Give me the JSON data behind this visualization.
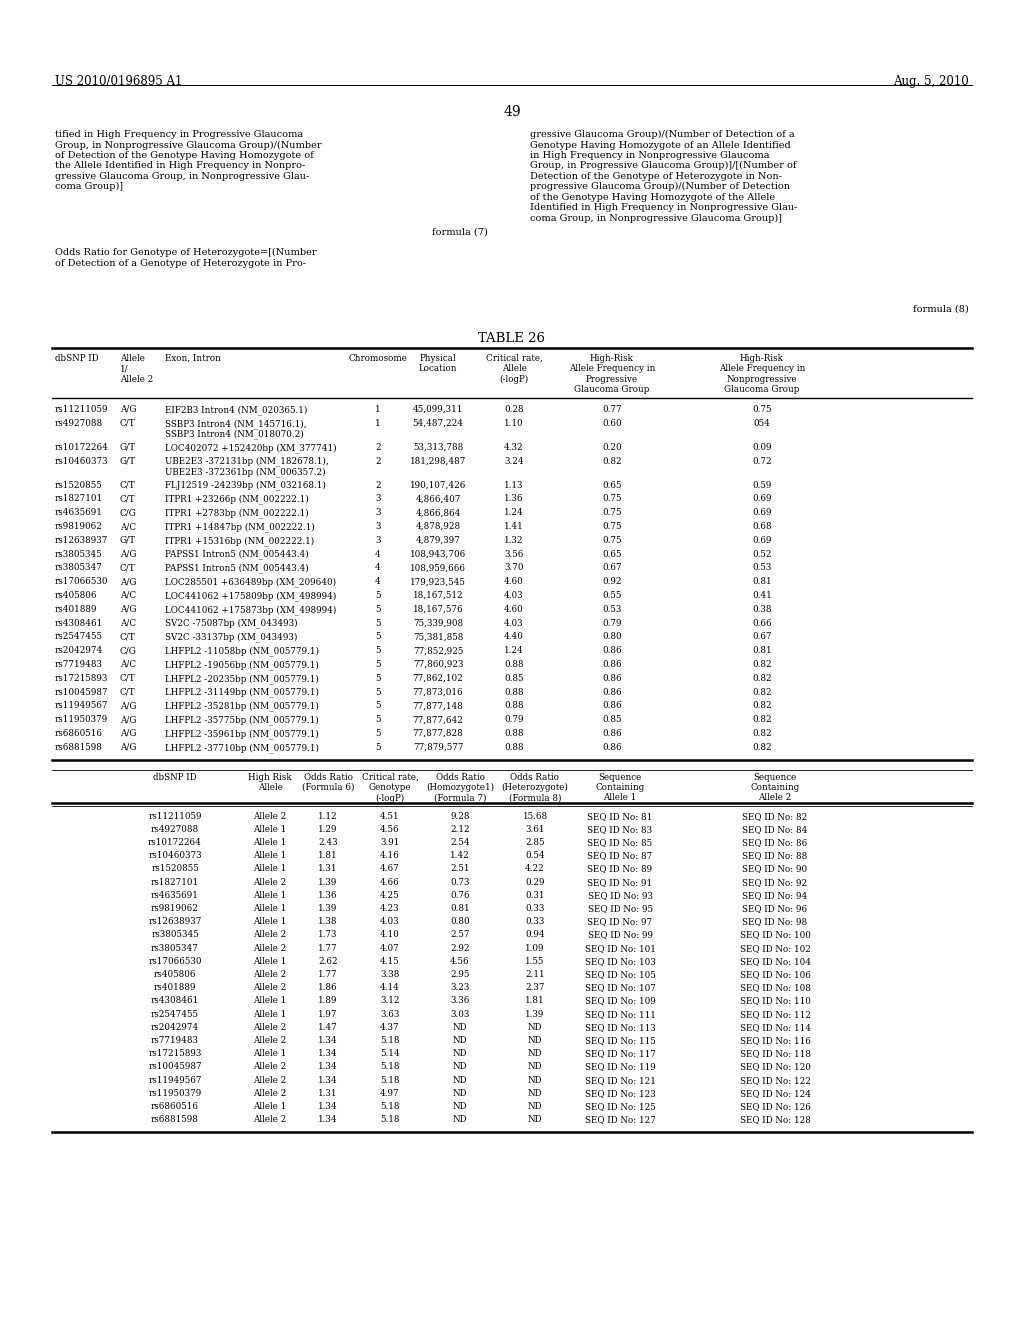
{
  "header_left": "US 2010/0196895 A1",
  "header_right": "Aug. 5, 2010",
  "page_number": "49",
  "bg_color": "#ffffff",
  "intro_text_left": "tified in High Frequency in Progressive Glaucoma\nGroup, in Nonprogressive Glaucoma Group)/(Number\nof Detection of the Genotype Having Homozygote of\nthe Allele Identified in High Frequency in Nonpro-\ngressive Glaucoma Group, in Nonprogressive Glau-\ncoma Group)]",
  "formula_7": "formula (7)",
  "intro_text_left2": "Odds Ratio for Genotype of Heterozygote=[(Number\nof Detection of a Genotype of Heterozygote in Pro-",
  "intro_text_right": "gressive Glaucoma Group)/(Number of Detection of a\nGenotype Having Homozygote of an Allele Identified\nin High Frequency in Nonprogressive Glaucoma\nGroup, in Progressive Glaucoma Group)]/[(Number of\nDetection of the Genotype of Heterozygote in Non-\nprogressive Glaucoma Group)/(Number of Detection\nof the Genotype Having Homozygote of the Allele\nIdentified in High Frequency in Nonprogressive Glau-\ncoma Group, in Nonprogressive Glaucoma Group)]",
  "formula_8": "formula (8)",
  "table_title": "TABLE 26",
  "table1_data": [
    [
      "rs11211059",
      "A/G",
      "EIF2B3 Intron4 (NM_020365.1)",
      "1",
      "45,099,311",
      "0.28",
      "0.77",
      "0.75"
    ],
    [
      "rs4927088",
      "C/T",
      "SSBP3 Intron4 (NM_145716.1),\nSSBP3 Intron4 (NM_018070.2)",
      "1",
      "54,487,224",
      "1.10",
      "0.60",
      "054"
    ],
    [
      "rs10172264",
      "G/T",
      "LOC402072 +152420bp (XM_377741)",
      "2",
      "53,313,788",
      "4.32",
      "0.20",
      "0.09"
    ],
    [
      "rs10460373",
      "G/T",
      "UBE2E3 -372131bp (NM_182678.1),\nUBE2E3 -372361bp (NM_006357.2)",
      "2",
      "181,298,487",
      "3.24",
      "0.82",
      "0.72"
    ],
    [
      "rs1520855",
      "C/T",
      "FLJ12519 -24239bp (NM_032168.1)",
      "2",
      "190,107,426",
      "1.13",
      "0.65",
      "0.59"
    ],
    [
      "rs1827101",
      "C/T",
      "ITPR1 +23266p (NM_002222.1)",
      "3",
      "4,866,407",
      "1.36",
      "0.75",
      "0.69"
    ],
    [
      "rs4635691",
      "C/G",
      "ITPR1 +2783bp (NM_002222.1)",
      "3",
      "4,866,864",
      "1.24",
      "0.75",
      "0.69"
    ],
    [
      "rs9819062",
      "A/C",
      "ITPR1 +14847bp (NM_002222.1)",
      "3",
      "4,878,928",
      "1.41",
      "0.75",
      "0.68"
    ],
    [
      "rs12638937",
      "G/T",
      "ITPR1 +15316bp (NM_002222.1)",
      "3",
      "4,879,397",
      "1.32",
      "0.75",
      "0.69"
    ],
    [
      "rs3805345",
      "A/G",
      "PAPSS1 Intron5 (NM_005443.4)",
      "4",
      "108,943,706",
      "3.56",
      "0.65",
      "0.52"
    ],
    [
      "rs3805347",
      "C/T",
      "PAPSS1 Intron5 (NM_005443.4)",
      "4",
      "108,959,666",
      "3.70",
      "0.67",
      "0.53"
    ],
    [
      "rs17066530",
      "A/G",
      "LOC285501 +636489bp (XM_209640)",
      "4",
      "179,923,545",
      "4.60",
      "0.92",
      "0.81"
    ],
    [
      "rs405806",
      "A/C",
      "LOC441062 +175809bp (XM_498994)",
      "5",
      "18,167,512",
      "4.03",
      "0.55",
      "0.41"
    ],
    [
      "rs401889",
      "A/G",
      "LOC441062 +175873bp (XM_498994)",
      "5",
      "18,167,576",
      "4.60",
      "0.53",
      "0.38"
    ],
    [
      "rs4308461",
      "A/C",
      "SV2C -75087bp (XM_043493)",
      "5",
      "75,339,908",
      "4.03",
      "0.79",
      "0.66"
    ],
    [
      "rs2547455",
      "C/T",
      "SV2C -33137bp (XM_043493)",
      "5",
      "75,381,858",
      "4.40",
      "0.80",
      "0.67"
    ],
    [
      "rs2042974",
      "C/G",
      "LHFPL2 -11058bp (NM_005779.1)",
      "5",
      "77,852,925",
      "1.24",
      "0.86",
      "0.81"
    ],
    [
      "rs7719483",
      "A/C",
      "LHFPL2 -19056bp (NM_005779.1)",
      "5",
      "77,860,923",
      "0.88",
      "0.86",
      "0.82"
    ],
    [
      "rs17215893",
      "C/T",
      "LHFPL2 -20235bp (NM_005779.1)",
      "5",
      "77,862,102",
      "0.85",
      "0.86",
      "0.82"
    ],
    [
      "rs10045987",
      "C/T",
      "LHFPL2 -31149bp (NM_005779.1)",
      "5",
      "77,873,016",
      "0.88",
      "0.86",
      "0.82"
    ],
    [
      "rs11949567",
      "A/G",
      "LHFPL2 -35281bp (NM_005779.1)",
      "5",
      "77,877,148",
      "0.88",
      "0.86",
      "0.82"
    ],
    [
      "rs11950379",
      "A/G",
      "LHFPL2 -35775bp (NM_005779.1)",
      "5",
      "77,877,642",
      "0.79",
      "0.85",
      "0.82"
    ],
    [
      "rs6860516",
      "A/G",
      "LHFPL2 -35961bp (NM_005779.1)",
      "5",
      "77,877,828",
      "0.88",
      "0.86",
      "0.82"
    ],
    [
      "rs6881598",
      "A/G",
      "LHFPL2 -37710bp (NM_005779.1)",
      "5",
      "77,879,577",
      "0.88",
      "0.86",
      "0.82"
    ]
  ],
  "table2_data": [
    [
      "rs11211059",
      "Allele 2",
      "1.12",
      "4.51",
      "9.28",
      "15.68",
      "SEQ ID No: 81",
      "SEQ ID No: 82"
    ],
    [
      "rs4927088",
      "Allele 1",
      "1.29",
      "4.56",
      "2.12",
      "3.61",
      "SEQ ID No: 83",
      "SEQ ID No: 84"
    ],
    [
      "rs10172264",
      "Allele 1",
      "2.43",
      "3.91",
      "2.54",
      "2.85",
      "SEQ ID No: 85",
      "SEQ ID No: 86"
    ],
    [
      "rs10460373",
      "Allele 1",
      "1.81",
      "4.16",
      "1.42",
      "0.54",
      "SEQ ID No: 87",
      "SEQ ID No: 88"
    ],
    [
      "rs1520855",
      "Allele 1",
      "1.31",
      "4.67",
      "2.51",
      "4.22",
      "SEQ ID No: 89",
      "SEQ ID No: 90"
    ],
    [
      "rs1827101",
      "Allele 2",
      "1.39",
      "4.66",
      "0.73",
      "0.29",
      "SEQ ID No: 91",
      "SEQ ID No: 92"
    ],
    [
      "rs4635691",
      "Allele 1",
      "1.36",
      "4.25",
      "0.76",
      "0.31",
      "SEQ ID No: 93",
      "SEQ ID No: 94"
    ],
    [
      "rs9819062",
      "Allele 1",
      "1.39",
      "4.23",
      "0.81",
      "0.33",
      "SEQ ID No: 95",
      "SEQ ID No: 96"
    ],
    [
      "rs12638937",
      "Allele 1",
      "1.38",
      "4.03",
      "0.80",
      "0.33",
      "SEQ ID No: 97",
      "SEQ ID No: 98"
    ],
    [
      "rs3805345",
      "Allele 2",
      "1.73",
      "4.10",
      "2.57",
      "0.94",
      "SEQ ID No: 99",
      "SEQ ID No: 100"
    ],
    [
      "rs3805347",
      "Allele 2",
      "1.77",
      "4.07",
      "2.92",
      "1.09",
      "SEQ ID No: 101",
      "SEQ ID No: 102"
    ],
    [
      "rs17066530",
      "Allele 1",
      "2.62",
      "4.15",
      "4.56",
      "1.55",
      "SEQ ID No: 103",
      "SEQ ID No: 104"
    ],
    [
      "rs405806",
      "Allele 2",
      "1.77",
      "3.38",
      "2.95",
      "2.11",
      "SEQ ID No: 105",
      "SEQ ID No: 106"
    ],
    [
      "rs401889",
      "Allele 2",
      "1.86",
      "4.14",
      "3.23",
      "2.37",
      "SEQ ID No: 107",
      "SEQ ID No: 108"
    ],
    [
      "rs4308461",
      "Allele 1",
      "1.89",
      "3.12",
      "3.36",
      "1.81",
      "SEQ ID No: 109",
      "SEQ ID No: 110"
    ],
    [
      "rs2547455",
      "Allele 1",
      "1.97",
      "3.63",
      "3.03",
      "1.39",
      "SEQ ID No: 111",
      "SEQ ID No: 112"
    ],
    [
      "rs2042974",
      "Allele 2",
      "1.47",
      "4.37",
      "ND",
      "ND",
      "SEQ ID No: 113",
      "SEQ ID No: 114"
    ],
    [
      "rs7719483",
      "Allele 2",
      "1.34",
      "5.18",
      "ND",
      "ND",
      "SEQ ID No: 115",
      "SEQ ID No: 116"
    ],
    [
      "rs17215893",
      "Allele 1",
      "1.34",
      "5.14",
      "ND",
      "ND",
      "SEQ ID No: 117",
      "SEQ ID No: 118"
    ],
    [
      "rs10045987",
      "Allele 2",
      "1.34",
      "5.18",
      "ND",
      "ND",
      "SEQ ID No: 119",
      "SEQ ID No: 120"
    ],
    [
      "rs11949567",
      "Allele 2",
      "1.34",
      "5.18",
      "ND",
      "ND",
      "SEQ ID No: 121",
      "SEQ ID No: 122"
    ],
    [
      "rs11950379",
      "Allele 2",
      "1.31",
      "4.97",
      "ND",
      "ND",
      "SEQ ID No: 123",
      "SEQ ID No: 124"
    ],
    [
      "rs6860516",
      "Allele 1",
      "1.34",
      "5.18",
      "ND",
      "ND",
      "SEQ ID No: 125",
      "SEQ ID No: 126"
    ],
    [
      "rs6881598",
      "Allele 2",
      "1.34",
      "5.18",
      "ND",
      "ND",
      "SEQ ID No: 127",
      "SEQ ID No: 128"
    ]
  ]
}
